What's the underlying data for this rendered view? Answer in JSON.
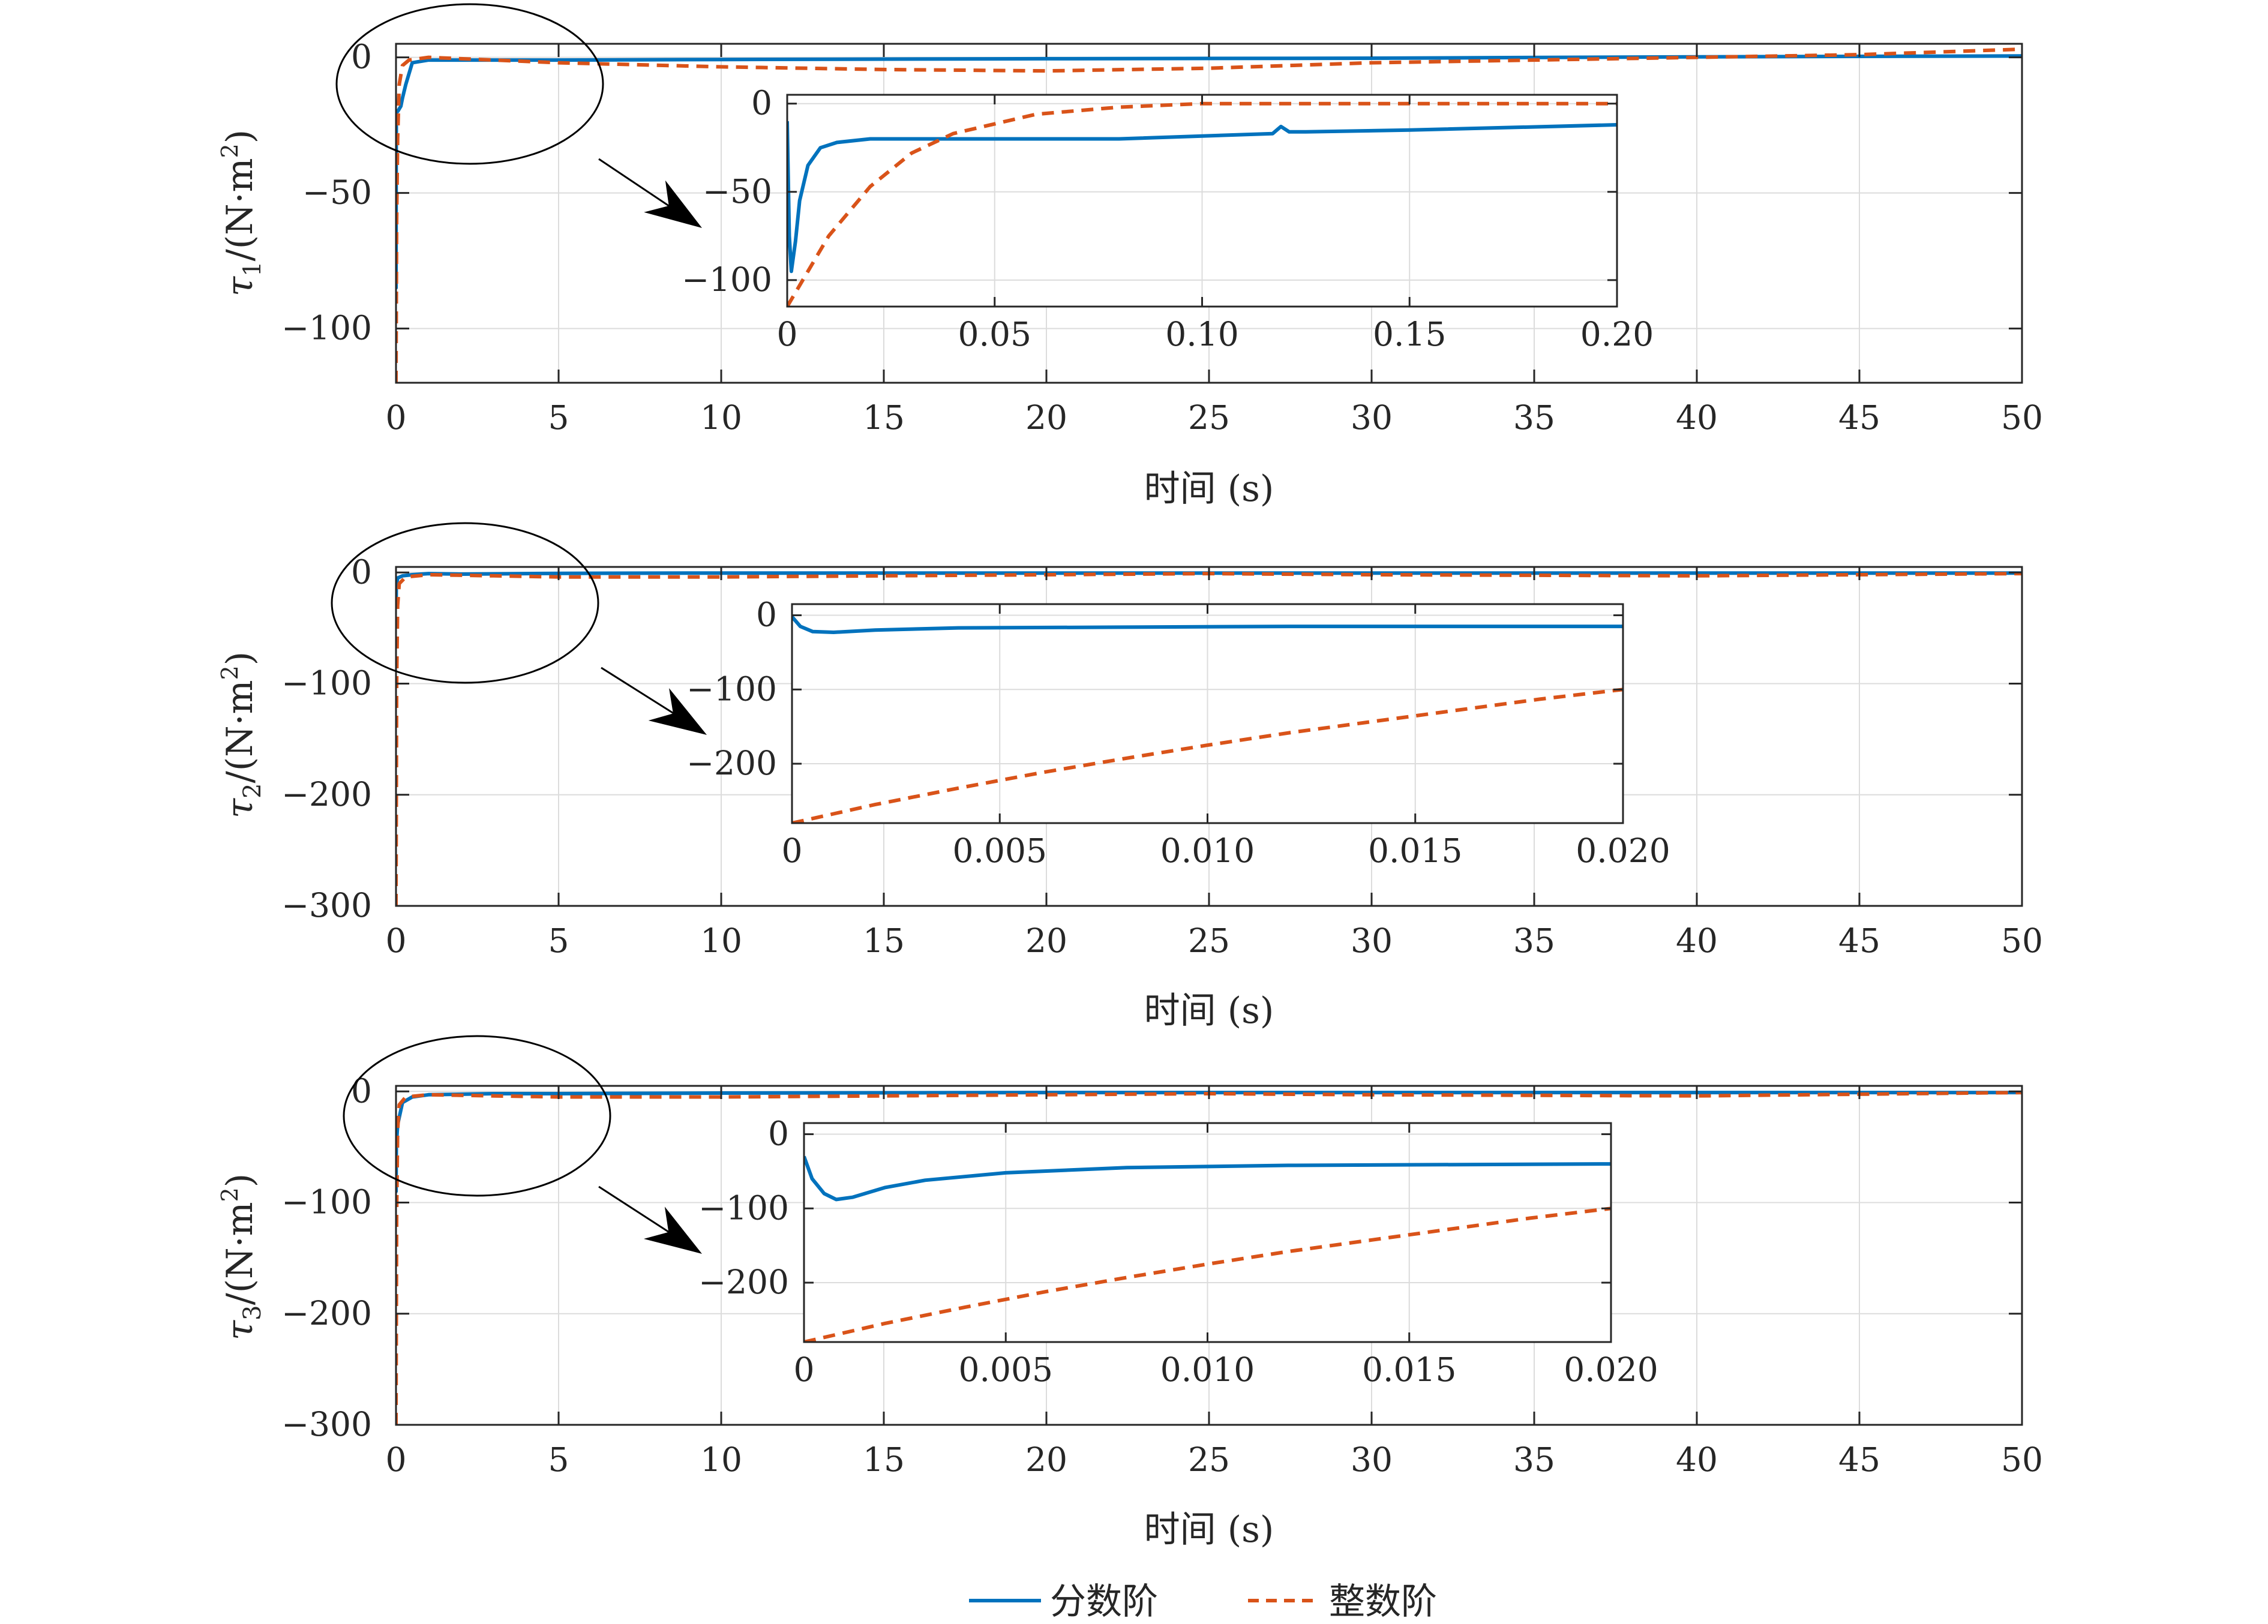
{
  "colors": {
    "fractional": "#0072BD",
    "integer": "#D95319",
    "axis": "#262626",
    "grid": "#dcdcdc"
  },
  "legend": {
    "fractional_label": "分数阶",
    "integer_label": "整数阶"
  },
  "chart_data": [
    {
      "type": "line",
      "ylabel_symbol": "τ",
      "ylabel_subscript": "1",
      "ylabel_unit": "/(N·m",
      "ylabel_sup": "2",
      "ylabel_close": ")",
      "xlabel": "时间 (s)",
      "xlim": [
        0,
        50
      ],
      "ylim": [
        -120,
        5
      ],
      "xticks": [
        0,
        5,
        10,
        15,
        20,
        25,
        30,
        35,
        40,
        45,
        50
      ],
      "xtick_labels": [
        "0",
        "5",
        "10",
        "15",
        "20",
        "25",
        "30",
        "35",
        "40",
        "45",
        "50"
      ],
      "yticks": [
        -100,
        -50,
        0
      ],
      "ytick_labels": [
        "−100",
        "−50",
        "0"
      ],
      "grid": true,
      "series": [
        {
          "name": "分数阶",
          "style": "solid",
          "x": [
            0,
            0.002,
            0.005,
            0.01,
            0.02,
            0.05,
            0.1,
            0.15,
            0.2,
            0.3,
            0.5,
            1,
            5,
            10,
            20,
            30,
            40,
            50
          ],
          "y": [
            -20,
            -85,
            -40,
            -25,
            -20,
            -20,
            -19,
            -18,
            -15,
            -10,
            -2,
            -1,
            -1,
            -0.8,
            -0.5,
            -0.3,
            0.2,
            0.5
          ]
        },
        {
          "name": "整数阶",
          "style": "dashed",
          "x": [
            0,
            0.02,
            0.05,
            0.1,
            0.2,
            0.4,
            1,
            3,
            5,
            10,
            15,
            20,
            25,
            30,
            35,
            40,
            45,
            50
          ],
          "y": [
            -120,
            -60,
            -30,
            -10,
            -3,
            -1,
            0,
            -1,
            -2,
            -3.5,
            -4.5,
            -5,
            -4,
            -2,
            -1,
            0,
            1,
            3
          ]
        }
      ],
      "inset": {
        "xlim": [
          0,
          0.2
        ],
        "ylim": [
          -115,
          5
        ],
        "xticks": [
          0,
          0.05,
          0.1,
          0.15,
          0.2
        ],
        "xtick_labels": [
          "0",
          "0.05",
          "0.10",
          "0.15",
          "0.20"
        ],
        "yticks": [
          -100,
          -50,
          0
        ],
        "ytick_labels": [
          "−100",
          "−50",
          "0"
        ],
        "series": [
          {
            "name": "分数阶",
            "style": "solid",
            "x": [
              0,
              0.0005,
              0.001,
              0.002,
              0.003,
              0.005,
              0.008,
              0.012,
              0.02,
              0.04,
              0.08,
              0.117,
              0.119,
              0.121,
              0.125,
              0.15,
              0.2
            ],
            "y": [
              -10,
              -75,
              -95,
              -78,
              -55,
              -35,
              -25,
              -22,
              -20,
              -20,
              -20,
              -17,
              -13,
              -16,
              -16,
              -15,
              -12
            ]
          },
          {
            "name": "整数阶",
            "style": "dashed",
            "x": [
              0,
              0.005,
              0.01,
              0.02,
              0.03,
              0.04,
              0.06,
              0.08,
              0.1,
              0.12,
              0.2
            ],
            "y": [
              -115,
              -95,
              -75,
              -47,
              -28,
              -17,
              -6,
              -2,
              0,
              0,
              0
            ]
          }
        ]
      }
    },
    {
      "type": "line",
      "ylabel_symbol": "τ",
      "ylabel_subscript": "2",
      "ylabel_unit": "/(N·m",
      "ylabel_sup": "2",
      "ylabel_close": ")",
      "xlabel": "时间 (s)",
      "xlim": [
        0,
        50
      ],
      "ylim": [
        -300,
        5
      ],
      "xticks": [
        0,
        5,
        10,
        15,
        20,
        25,
        30,
        35,
        40,
        45,
        50
      ],
      "xtick_labels": [
        "0",
        "5",
        "10",
        "15",
        "20",
        "25",
        "30",
        "35",
        "40",
        "45",
        "50"
      ],
      "yticks": [
        -300,
        -200,
        -100,
        0
      ],
      "ytick_labels": [
        "−300",
        "−200",
        "−100",
        "0"
      ],
      "grid": true,
      "series": [
        {
          "name": "分数阶",
          "style": "solid",
          "x": [
            0,
            0.003,
            0.01,
            0.05,
            0.2,
            0.5,
            1,
            2,
            5,
            10,
            20,
            30,
            40,
            50
          ],
          "y": [
            -25,
            -30,
            -12,
            -5,
            -3,
            -2,
            -1,
            -1.5,
            -0.8,
            -0.5,
            -0.5,
            -0.5,
            -0.5,
            -0.5
          ]
        },
        {
          "name": "整数阶",
          "style": "dashed",
          "x": [
            0,
            0.02,
            0.05,
            0.1,
            0.3,
            1,
            3,
            5,
            10,
            15,
            20,
            25,
            30,
            40,
            50
          ],
          "y": [
            -300,
            -100,
            -30,
            -10,
            -4,
            -2,
            -3,
            -4,
            -4,
            -3,
            -2,
            -1,
            -2,
            -3,
            -1
          ]
        }
      ],
      "inset": {
        "xlim": [
          0,
          0.02
        ],
        "ylim": [
          -280,
          15
        ],
        "xticks": [
          0,
          0.005,
          0.01,
          0.015,
          0.02
        ],
        "xtick_labels": [
          "0",
          "0.005",
          "0.010",
          "0.015",
          "0.020"
        ],
        "yticks": [
          -200,
          -100,
          0
        ],
        "ytick_labels": [
          "−200",
          "−100",
          "0"
        ],
        "series": [
          {
            "name": "分数阶",
            "style": "solid",
            "x": [
              0,
              0.0002,
              0.0005,
              0.001,
              0.002,
              0.004,
              0.008,
              0.012,
              0.02
            ],
            "y": [
              -2,
              -15,
              -22,
              -23,
              -20,
              -17,
              -16,
              -15,
              -15
            ]
          },
          {
            "name": "整数阶",
            "style": "dashed",
            "x": [
              0,
              0.002,
              0.004,
              0.006,
              0.008,
              0.01,
              0.012,
              0.014,
              0.016,
              0.018,
              0.02
            ],
            "y": [
              -280,
              -255,
              -233,
              -212,
              -193,
              -175,
              -158,
              -143,
              -128,
              -113,
              -100
            ]
          }
        ]
      }
    },
    {
      "type": "line",
      "ylabel_symbol": "τ",
      "ylabel_subscript": "3",
      "ylabel_unit": "/(N·m",
      "ylabel_sup": "2",
      "ylabel_close": ")",
      "xlabel": "时间 (s)",
      "xlim": [
        0,
        50
      ],
      "ylim": [
        -300,
        5
      ],
      "xticks": [
        0,
        5,
        10,
        15,
        20,
        25,
        30,
        35,
        40,
        45,
        50
      ],
      "xtick_labels": [
        "0",
        "5",
        "10",
        "15",
        "20",
        "25",
        "30",
        "35",
        "40",
        "45",
        "50"
      ],
      "yticks": [
        -300,
        -200,
        -100,
        0
      ],
      "ytick_labels": [
        "−300",
        "−200",
        "−100",
        "0"
      ],
      "grid": true,
      "series": [
        {
          "name": "分数阶",
          "style": "solid",
          "x": [
            0,
            0.002,
            0.005,
            0.01,
            0.05,
            0.2,
            0.5,
            1,
            3,
            5,
            10,
            20,
            30,
            40,
            50
          ],
          "y": [
            -40,
            -90,
            -70,
            -50,
            -30,
            -10,
            -5,
            -3,
            -2,
            -2,
            -1.5,
            -1,
            -1,
            -1,
            -1
          ]
        },
        {
          "name": "整数阶",
          "style": "dashed",
          "x": [
            0,
            0.02,
            0.05,
            0.1,
            0.3,
            1,
            3,
            5,
            10,
            15,
            20,
            25,
            30,
            40,
            50
          ],
          "y": [
            -300,
            -110,
            -35,
            -12,
            -5,
            -3,
            -4,
            -5,
            -5,
            -4,
            -3,
            -2,
            -3,
            -4,
            -1
          ]
        }
      ],
      "inset": {
        "xlim": [
          0,
          0.02
        ],
        "ylim": [
          -280,
          15
        ],
        "xticks": [
          0,
          0.005,
          0.01,
          0.015,
          0.02
        ],
        "xtick_labels": [
          "0",
          "0.005",
          "0.010",
          "0.015",
          "0.020"
        ],
        "yticks": [
          -200,
          -100,
          0
        ],
        "ytick_labels": [
          "−200",
          "−100",
          "0"
        ],
        "series": [
          {
            "name": "分数阶",
            "style": "solid",
            "x": [
              0,
              0.0002,
              0.0005,
              0.0008,
              0.0012,
              0.002,
              0.003,
              0.005,
              0.008,
              0.012,
              0.02
            ],
            "y": [
              -30,
              -60,
              -80,
              -88,
              -85,
              -72,
              -62,
              -52,
              -45,
              -42,
              -40
            ]
          },
          {
            "name": "整数阶",
            "style": "dashed",
            "x": [
              0,
              0.002,
              0.004,
              0.006,
              0.008,
              0.01,
              0.012,
              0.014,
              0.016,
              0.018,
              0.02
            ],
            "y": [
              -280,
              -255,
              -233,
              -212,
              -193,
              -175,
              -158,
              -143,
              -128,
              -113,
              -100
            ]
          }
        ]
      }
    }
  ]
}
